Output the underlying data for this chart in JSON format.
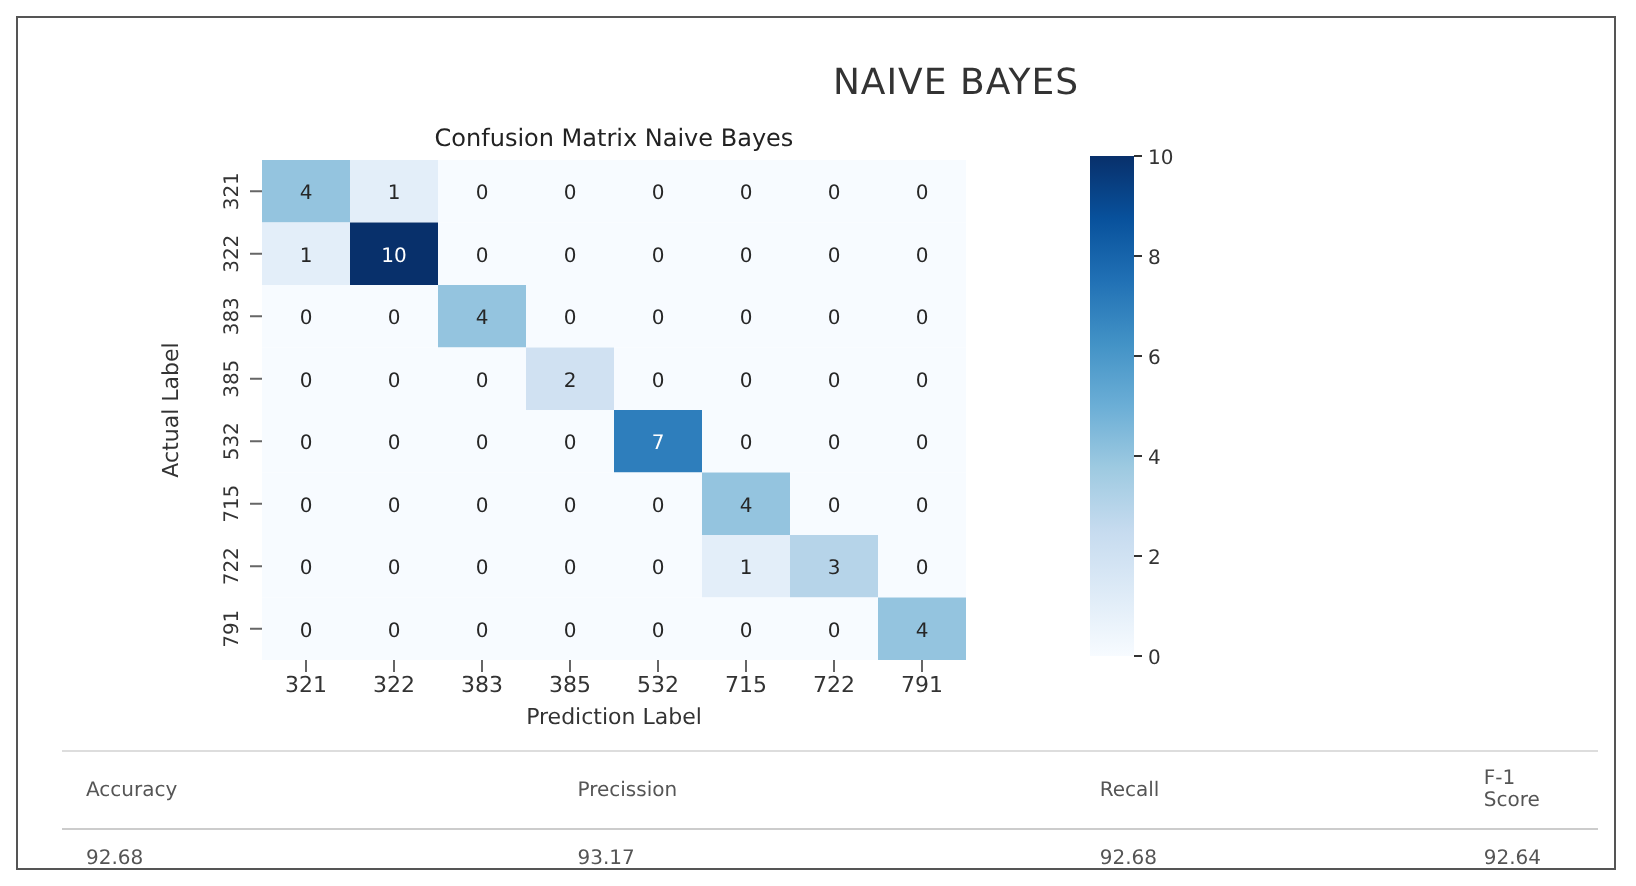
{
  "chart_data": {
    "type": "heatmap",
    "title": "NAIVE BAYES",
    "subtitle": "Confusion Matrix Naive Bayes",
    "xlabel": "Prediction Label",
    "ylabel": "Actual Label",
    "categories": [
      "321",
      "322",
      "383",
      "385",
      "532",
      "715",
      "722",
      "791"
    ],
    "y_categories": [
      "321",
      "322",
      "383",
      "385",
      "532",
      "715",
      "722",
      "791"
    ],
    "cells": [
      [
        4,
        1,
        0,
        0,
        0,
        0,
        0,
        0
      ],
      [
        1,
        10,
        0,
        0,
        0,
        0,
        0,
        0
      ],
      [
        0,
        0,
        4,
        0,
        0,
        0,
        0,
        0
      ],
      [
        0,
        0,
        0,
        2,
        0,
        0,
        0,
        0
      ],
      [
        0,
        0,
        0,
        0,
        7,
        0,
        0,
        0
      ],
      [
        0,
        0,
        0,
        0,
        0,
        4,
        0,
        0
      ],
      [
        0,
        0,
        0,
        0,
        0,
        1,
        3,
        0
      ],
      [
        0,
        0,
        0,
        0,
        0,
        0,
        0,
        4
      ]
    ],
    "data_labels": true,
    "clim": [
      0,
      10
    ],
    "cticks": [
      0,
      2,
      4,
      6,
      8,
      10
    ],
    "annotations": [
      "Accuracy",
      "Precission",
      "Recall",
      "F-1 Score",
      "92.68",
      "93.17",
      "92.68",
      "92.64"
    ]
  }
}
